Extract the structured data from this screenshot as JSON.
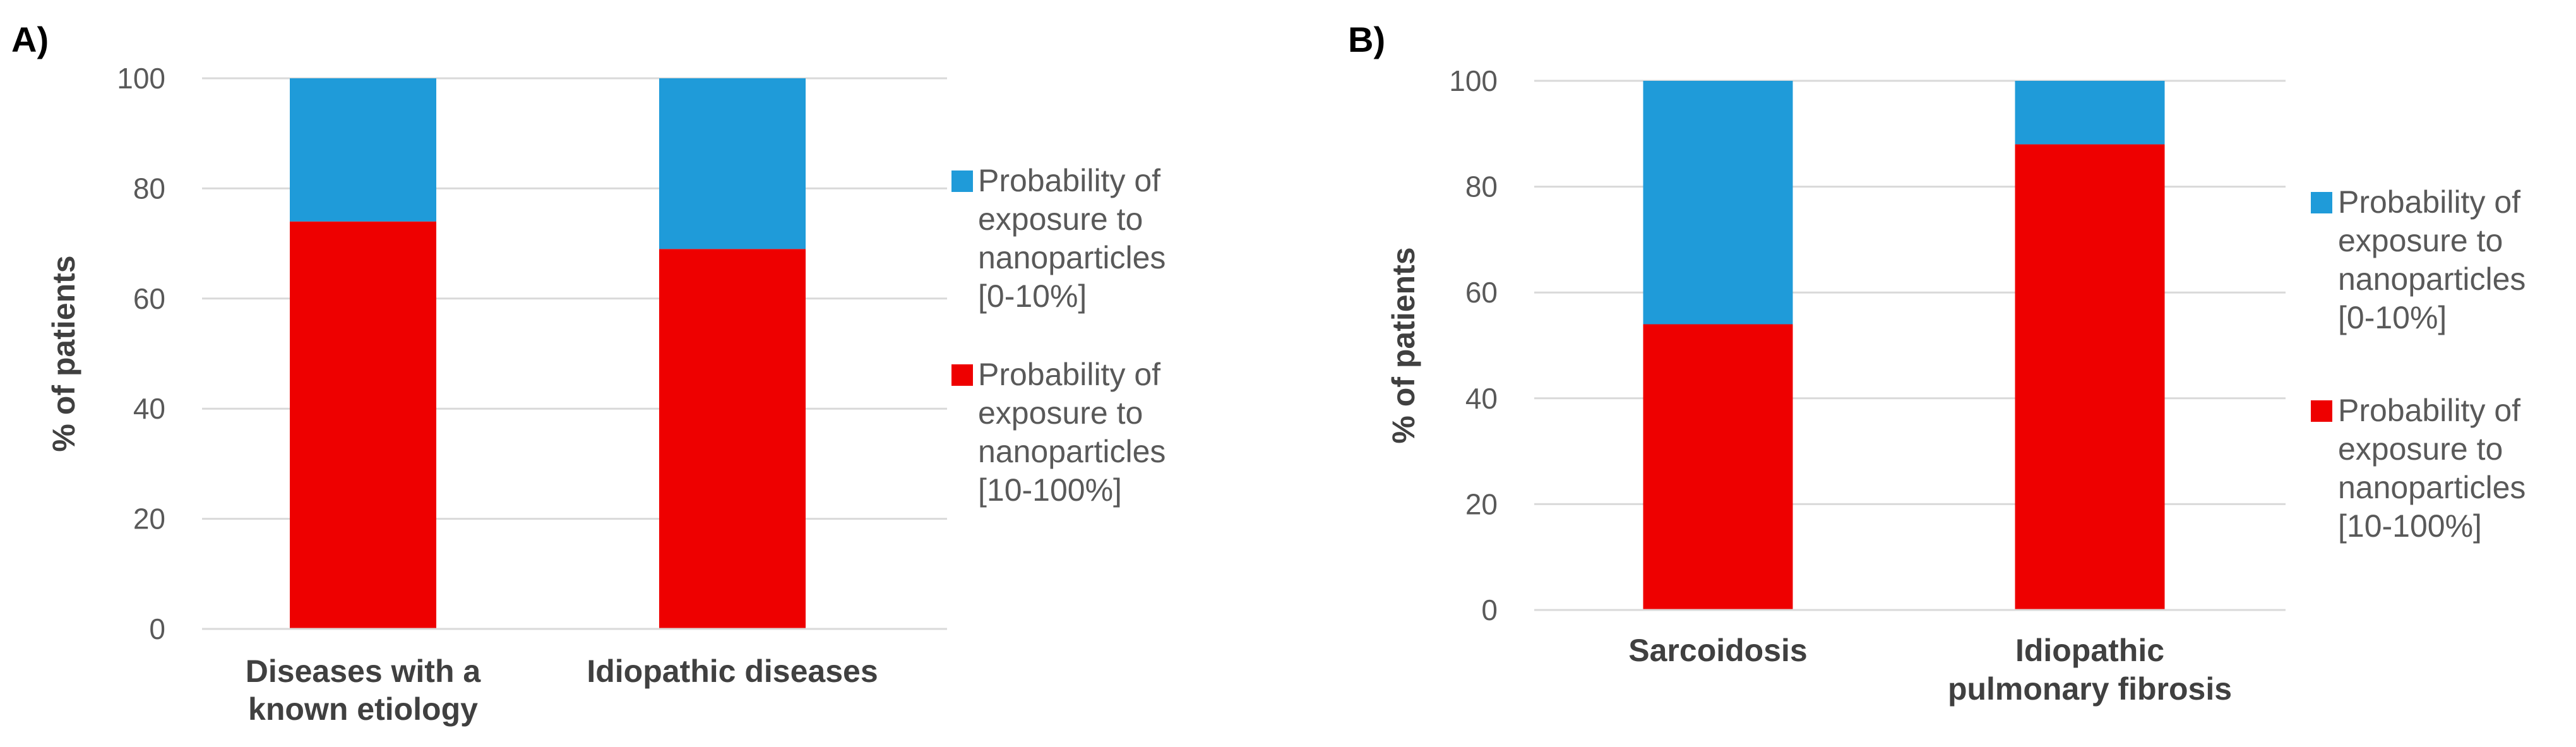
{
  "colors": {
    "low": "#1F9BD9",
    "high": "#EE0000",
    "grid": "#D9D9D9",
    "text": "#595959",
    "bold_text": "#404040",
    "panel_label": "#000000"
  },
  "legend_items": [
    {
      "color_key": "low",
      "lines": [
        "Probability of",
        "exposure to",
        "nanoparticles",
        "[0-10%]"
      ]
    },
    {
      "color_key": "high",
      "lines": [
        "Probability of",
        "exposure to",
        "nanoparticles",
        "[10-100%]"
      ]
    }
  ],
  "chart_data": [
    {
      "panel": "A)",
      "type": "bar",
      "stacked": true,
      "ylabel": "% of patients",
      "ylim": [
        0,
        100
      ],
      "yticks": [
        0,
        20,
        40,
        60,
        80,
        100
      ],
      "grid": true,
      "legend_position": "right",
      "categories": [
        {
          "label_lines": [
            "Diseases with a",
            "known etiology"
          ]
        },
        {
          "label_lines": [
            "Idiopathic diseases"
          ]
        }
      ],
      "series": [
        {
          "name": "Probability of exposure to nanoparticles [10-100%]",
          "color_key": "high",
          "values": [
            74,
            69
          ]
        },
        {
          "name": "Probability of exposure to nanoparticles [0-10%]",
          "color_key": "low",
          "values": [
            26,
            31
          ]
        }
      ]
    },
    {
      "panel": "B)",
      "type": "bar",
      "stacked": true,
      "ylabel": "% of patients",
      "ylim": [
        0,
        100
      ],
      "yticks": [
        0,
        20,
        40,
        60,
        80,
        100
      ],
      "grid": true,
      "legend_position": "right",
      "categories": [
        {
          "label_lines": [
            "Sarcoidosis"
          ]
        },
        {
          "label_lines": [
            "Idiopathic",
            "pulmonary fibrosis"
          ]
        }
      ],
      "series": [
        {
          "name": "Probability of exposure to nanoparticles [10-100%]",
          "color_key": "high",
          "values": [
            54,
            88
          ]
        },
        {
          "name": "Probability of exposure to nanoparticles [0-10%]",
          "color_key": "low",
          "values": [
            46,
            12
          ]
        }
      ]
    }
  ]
}
